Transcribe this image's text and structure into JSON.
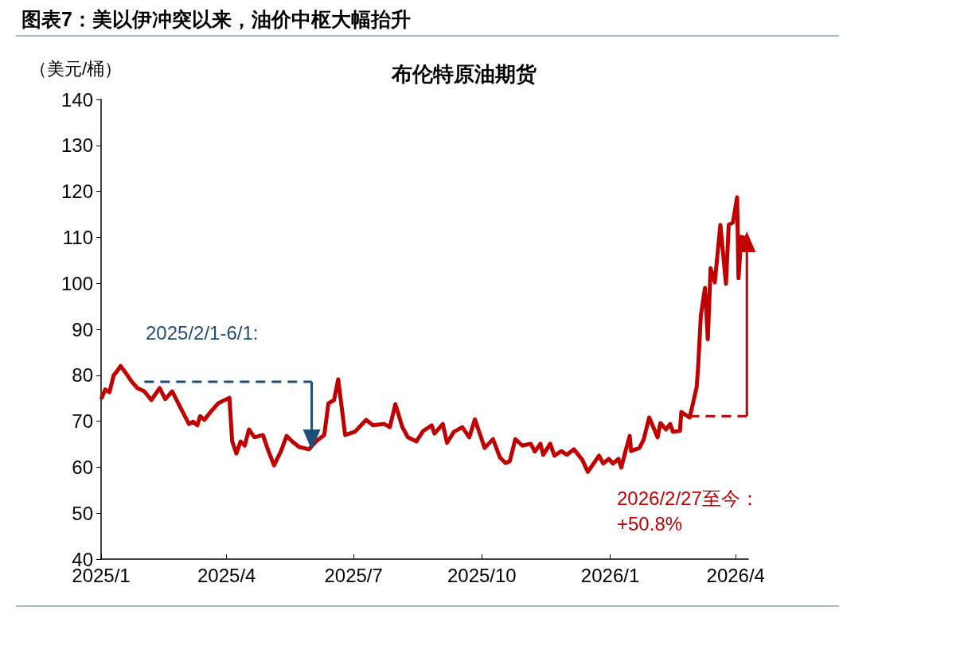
{
  "chart_data": {
    "type": "line",
    "title": "图表7：美以伊冲突以来，油价中枢大幅抬升",
    "subtitle": "布伦特原油期货",
    "ylabel": "（美元/桶）",
    "x": [
      "2025-01-01",
      "2025-01-04",
      "2025-01-07",
      "2025-01-10",
      "2025-01-12",
      "2025-01-15",
      "2025-01-18",
      "2025-01-23",
      "2025-01-27",
      "2025-02-01",
      "2025-02-06",
      "2025-02-12",
      "2025-02-16",
      "2025-02-21",
      "2025-02-27",
      "2025-03-05",
      "2025-03-08",
      "2025-03-11",
      "2025-03-13",
      "2025-03-16",
      "2025-03-21",
      "2025-03-26",
      "2025-04-03",
      "2025-04-05",
      "2025-04-08",
      "2025-04-11",
      "2025-04-14",
      "2025-04-17",
      "2025-04-21",
      "2025-04-27",
      "2025-05-01",
      "2025-05-05",
      "2025-05-10",
      "2025-05-14",
      "2025-05-18",
      "2025-05-23",
      "2025-05-30",
      "2025-06-04",
      "2025-06-10",
      "2025-06-13",
      "2025-06-17",
      "2025-06-20",
      "2025-06-25",
      "2025-07-02",
      "2025-07-10",
      "2025-07-15",
      "2025-07-23",
      "2025-07-27",
      "2025-07-31",
      "2025-08-05",
      "2025-08-09",
      "2025-08-15",
      "2025-08-20",
      "2025-08-26",
      "2025-08-28",
      "2025-09-03",
      "2025-09-06",
      "2025-09-11",
      "2025-09-17",
      "2025-09-22",
      "2025-09-26",
      "2025-10-03",
      "2025-10-09",
      "2025-10-14",
      "2025-10-18",
      "2025-10-21",
      "2025-10-25",
      "2025-10-30",
      "2025-11-05",
      "2025-11-08",
      "2025-11-12",
      "2025-11-14",
      "2025-11-19",
      "2025-11-22",
      "2025-11-27",
      "2025-12-01",
      "2025-12-06",
      "2025-12-12",
      "2025-12-16",
      "2025-12-24",
      "2025-12-27",
      "2025-12-31",
      "2026-01-03",
      "2026-01-07",
      "2026-01-09",
      "2026-01-12",
      "2026-01-15",
      "2026-01-16",
      "2026-01-22",
      "2026-01-25",
      "2026-01-29",
      "2026-02-04",
      "2026-02-06",
      "2026-02-10",
      "2026-02-13",
      "2026-02-15",
      "2026-02-20",
      "2026-02-21",
      "2026-02-27",
      "2026-03-04",
      "2026-03-05",
      "2026-03-07",
      "2026-03-10",
      "2026-03-12",
      "2026-03-14",
      "2026-03-17",
      "2026-03-21",
      "2026-03-25",
      "2026-03-27",
      "2026-03-30",
      "2026-04-02",
      "2026-04-03",
      "2026-04-05",
      "2026-04-09"
    ],
    "series": [
      {
        "color": "#c00000",
        "values": [
          74.8,
          76.9,
          76.3,
          80.0,
          80.7,
          82.0,
          80.8,
          78.6,
          77.2,
          76.5,
          74.6,
          77.2,
          74.8,
          76.5,
          72.9,
          69.4,
          69.9,
          69.1,
          71.1,
          70.3,
          72.2,
          73.9,
          75.1,
          65.6,
          63.0,
          65.6,
          64.7,
          68.2,
          66.5,
          67.0,
          63.5,
          60.4,
          63.5,
          66.8,
          65.6,
          64.4,
          63.9,
          65.6,
          67.0,
          73.9,
          74.6,
          79.1,
          67.0,
          67.7,
          70.3,
          69.1,
          69.4,
          68.7,
          73.7,
          68.7,
          66.5,
          65.6,
          67.9,
          69.1,
          67.3,
          69.4,
          65.3,
          67.7,
          68.7,
          66.5,
          70.4,
          64.2,
          66.1,
          62.1,
          60.9,
          61.3,
          66.1,
          64.7,
          65.1,
          63.4,
          65.1,
          62.7,
          65.1,
          62.5,
          63.5,
          62.7,
          63.9,
          61.6,
          59.0,
          62.5,
          60.8,
          61.8,
          60.8,
          61.8,
          59.9,
          63.5,
          66.8,
          63.5,
          64.2,
          66.0,
          70.8,
          66.5,
          69.6,
          68.2,
          69.4,
          67.7,
          67.9,
          72.0,
          70.8,
          77.4,
          81.5,
          92.9,
          99.0,
          87.8,
          103.3,
          100.2,
          112.7,
          99.9,
          112.7,
          113.2,
          118.7,
          101.1,
          110.1,
          109.7
        ]
      },
      {
        "color": "#1f4e79",
        "x": [
          "2025-02-01",
          "2025-06-01"
        ],
        "values": [
          78.6,
          78.6
        ],
        "line_style": "dashed",
        "marker": "none"
      },
      {
        "color": "#1f4e79",
        "x": [
          "2025-06-01",
          "2025-06-01"
        ],
        "values": [
          78.6,
          67.0
        ],
        "marker": "triangle"
      },
      {
        "color": "#c00000",
        "x": [
          "2026-02-27",
          "2026-04-09"
        ],
        "values": [
          71.1,
          71.1
        ],
        "line_style": "dashed",
        "marker": "none"
      },
      {
        "color": "#c00000",
        "x": [
          "2026-04-09",
          "2026-04-09"
        ],
        "values": [
          71.1,
          108.0
        ],
        "marker": "triangle"
      }
    ],
    "annotations": [
      "2025/2/1-6/1:",
      "2026/2/27至今：\n+50.8%"
    ],
    "xlim": [
      "2025-01-01",
      "2026-04-10"
    ],
    "xticks": [
      {
        "value": "2025-01",
        "label": "2025/1"
      },
      {
        "value": "2025-04",
        "label": "2025/4"
      },
      {
        "value": "2025-07",
        "label": "2025/7"
      },
      {
        "value": "2025-10",
        "label": "2025/10"
      },
      {
        "value": "2026-01",
        "label": "2026/1"
      },
      {
        "value": "2026-04",
        "label": "2026/4"
      }
    ],
    "ylim": [
      40,
      140
    ],
    "yticks": [
      40,
      50,
      60,
      70,
      80,
      90,
      100,
      110,
      120,
      130,
      140
    ],
    "line_style": "solid",
    "marker": "none"
  }
}
